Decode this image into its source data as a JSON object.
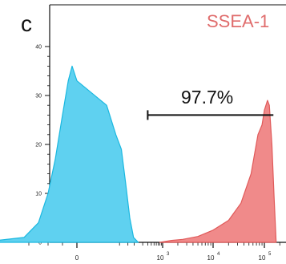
{
  "panel_label": "c",
  "chart_data": {
    "type": "area",
    "title": "SSEA-1",
    "xlabel": "",
    "ylabel": "",
    "x_scale": "biexponential",
    "ylim": [
      0,
      40
    ],
    "y_ticks": [
      "0",
      "10",
      "20",
      "30",
      "40"
    ],
    "x_ticks": [
      {
        "base": "0",
        "exp": "",
        "value": 0
      },
      {
        "base": "10",
        "exp": "3",
        "value": 1000
      },
      {
        "base": "10",
        "exp": "4",
        "value": 10000
      },
      {
        "base": "10",
        "exp": "5",
        "value": 100000
      }
    ],
    "gate": {
      "label": "97.7%",
      "start": 300,
      "end": 150000,
      "y": 26
    },
    "series": [
      {
        "name": "",
        "color": "#5fd1f0",
        "edge": "#1bb8e0",
        "points": [
          [
            -200,
            0
          ],
          [
            -110,
            1
          ],
          [
            -80,
            4
          ],
          [
            -60,
            10
          ],
          [
            -45,
            17
          ],
          [
            -30,
            26
          ],
          [
            -18,
            33
          ],
          [
            -10,
            36
          ],
          [
            0,
            33
          ],
          [
            10,
            28
          ],
          [
            22,
            22
          ],
          [
            35,
            19
          ],
          [
            50,
            12
          ],
          [
            70,
            5
          ],
          [
            95,
            1
          ],
          [
            140,
            0
          ]
        ]
      },
      {
        "name": "",
        "color": "#f08a8a",
        "edge": "#e05a5a",
        "points": [
          [
            800,
            0
          ],
          [
            1500,
            0.4
          ],
          [
            2500,
            0.6
          ],
          [
            5000,
            1.2
          ],
          [
            10000,
            2.5
          ],
          [
            20000,
            4.5
          ],
          [
            35000,
            8
          ],
          [
            55000,
            14
          ],
          [
            75000,
            22
          ],
          [
            90000,
            24
          ],
          [
            100000,
            27
          ],
          [
            115000,
            29
          ],
          [
            125000,
            28
          ],
          [
            140000,
            20
          ],
          [
            155000,
            9
          ],
          [
            170000,
            0
          ]
        ]
      }
    ]
  }
}
